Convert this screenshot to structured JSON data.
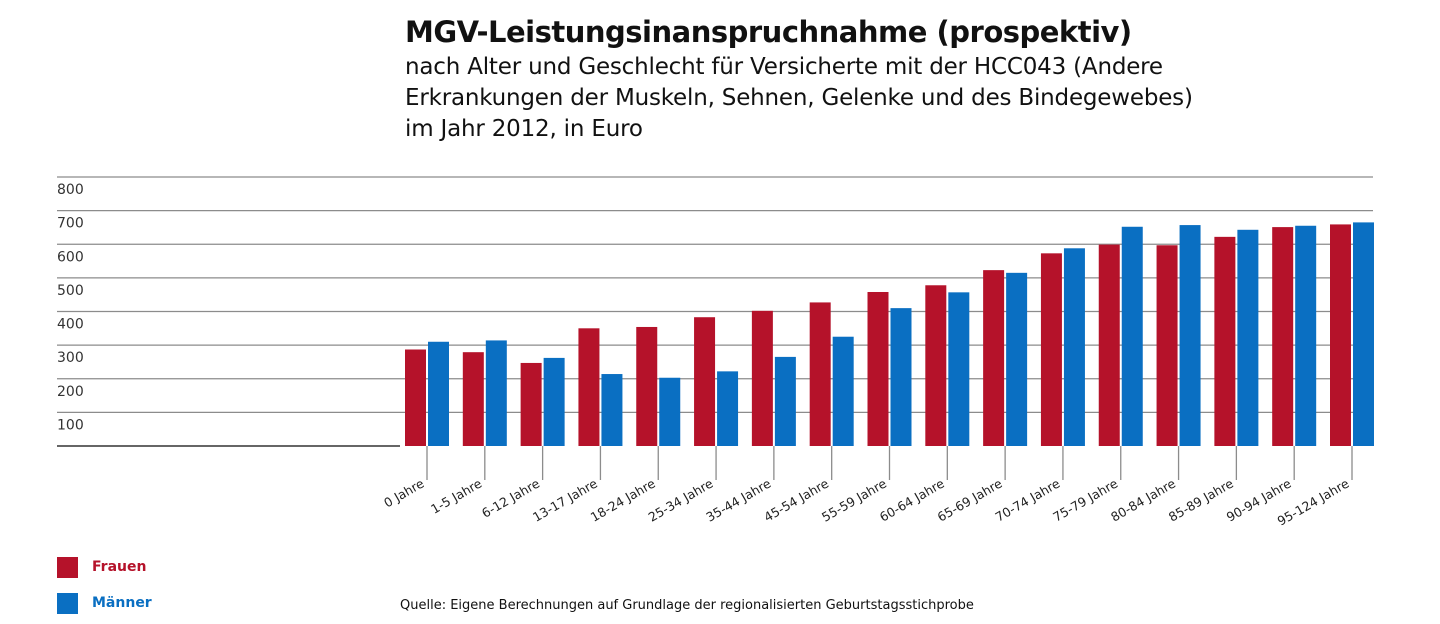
{
  "title": "MGV-Leistungsinanspruchnahme (prospektiv)",
  "subtitle_lines": [
    "nach Alter und Geschlecht für Versicherte mit der HCC043 (Andere",
    "Erkrankungen der Muskeln, Sehnen, Gelenke und des Bindegewebes)",
    "im Jahr 2012, in Euro"
  ],
  "source": "Quelle: Eigene Berechnungen auf Grundlage der regionalisierten Geburtstagsstichprobe",
  "legend": [
    {
      "name": "Frauen",
      "color": "#b5122a"
    },
    {
      "name": "Männer",
      "color": "#0a6fc2"
    }
  ],
  "chart_data": {
    "type": "bar",
    "title": "MGV-Leistungsinanspruchnahme (prospektiv)",
    "xlabel": "",
    "ylabel": "Euro",
    "ylim": [
      0,
      800
    ],
    "yticks": [
      100,
      200,
      300,
      400,
      500,
      600,
      700,
      800
    ],
    "grid": true,
    "legend_position": "bottom-left",
    "categories": [
      "0 Jahre",
      "1-5 Jahre",
      "6-12 Jahre",
      "13-17 Jahre",
      "18-24 Jahre",
      "25-34 Jahre",
      "35-44 Jahre",
      "45-54 Jahre",
      "55-59 Jahre",
      "60-64 Jahre",
      "65-69 Jahre",
      "70-74 Jahre",
      "75-79 Jahre",
      "80-84 Jahre",
      "85-89 Jahre",
      "90-94 Jahre",
      "95-124 Jahre"
    ],
    "series": [
      {
        "name": "Frauen",
        "color": "#b5122a",
        "values": [
          287,
          279,
          247,
          350,
          354,
          383,
          402,
          427,
          458,
          478,
          523,
          573,
          599,
          597,
          622,
          651,
          659
        ]
      },
      {
        "name": "Männer",
        "color": "#0a6fc2",
        "values": [
          310,
          314,
          262,
          214,
          203,
          222,
          265,
          325,
          410,
          457,
          515,
          588,
          652,
          657,
          643,
          655,
          665
        ]
      }
    ]
  }
}
